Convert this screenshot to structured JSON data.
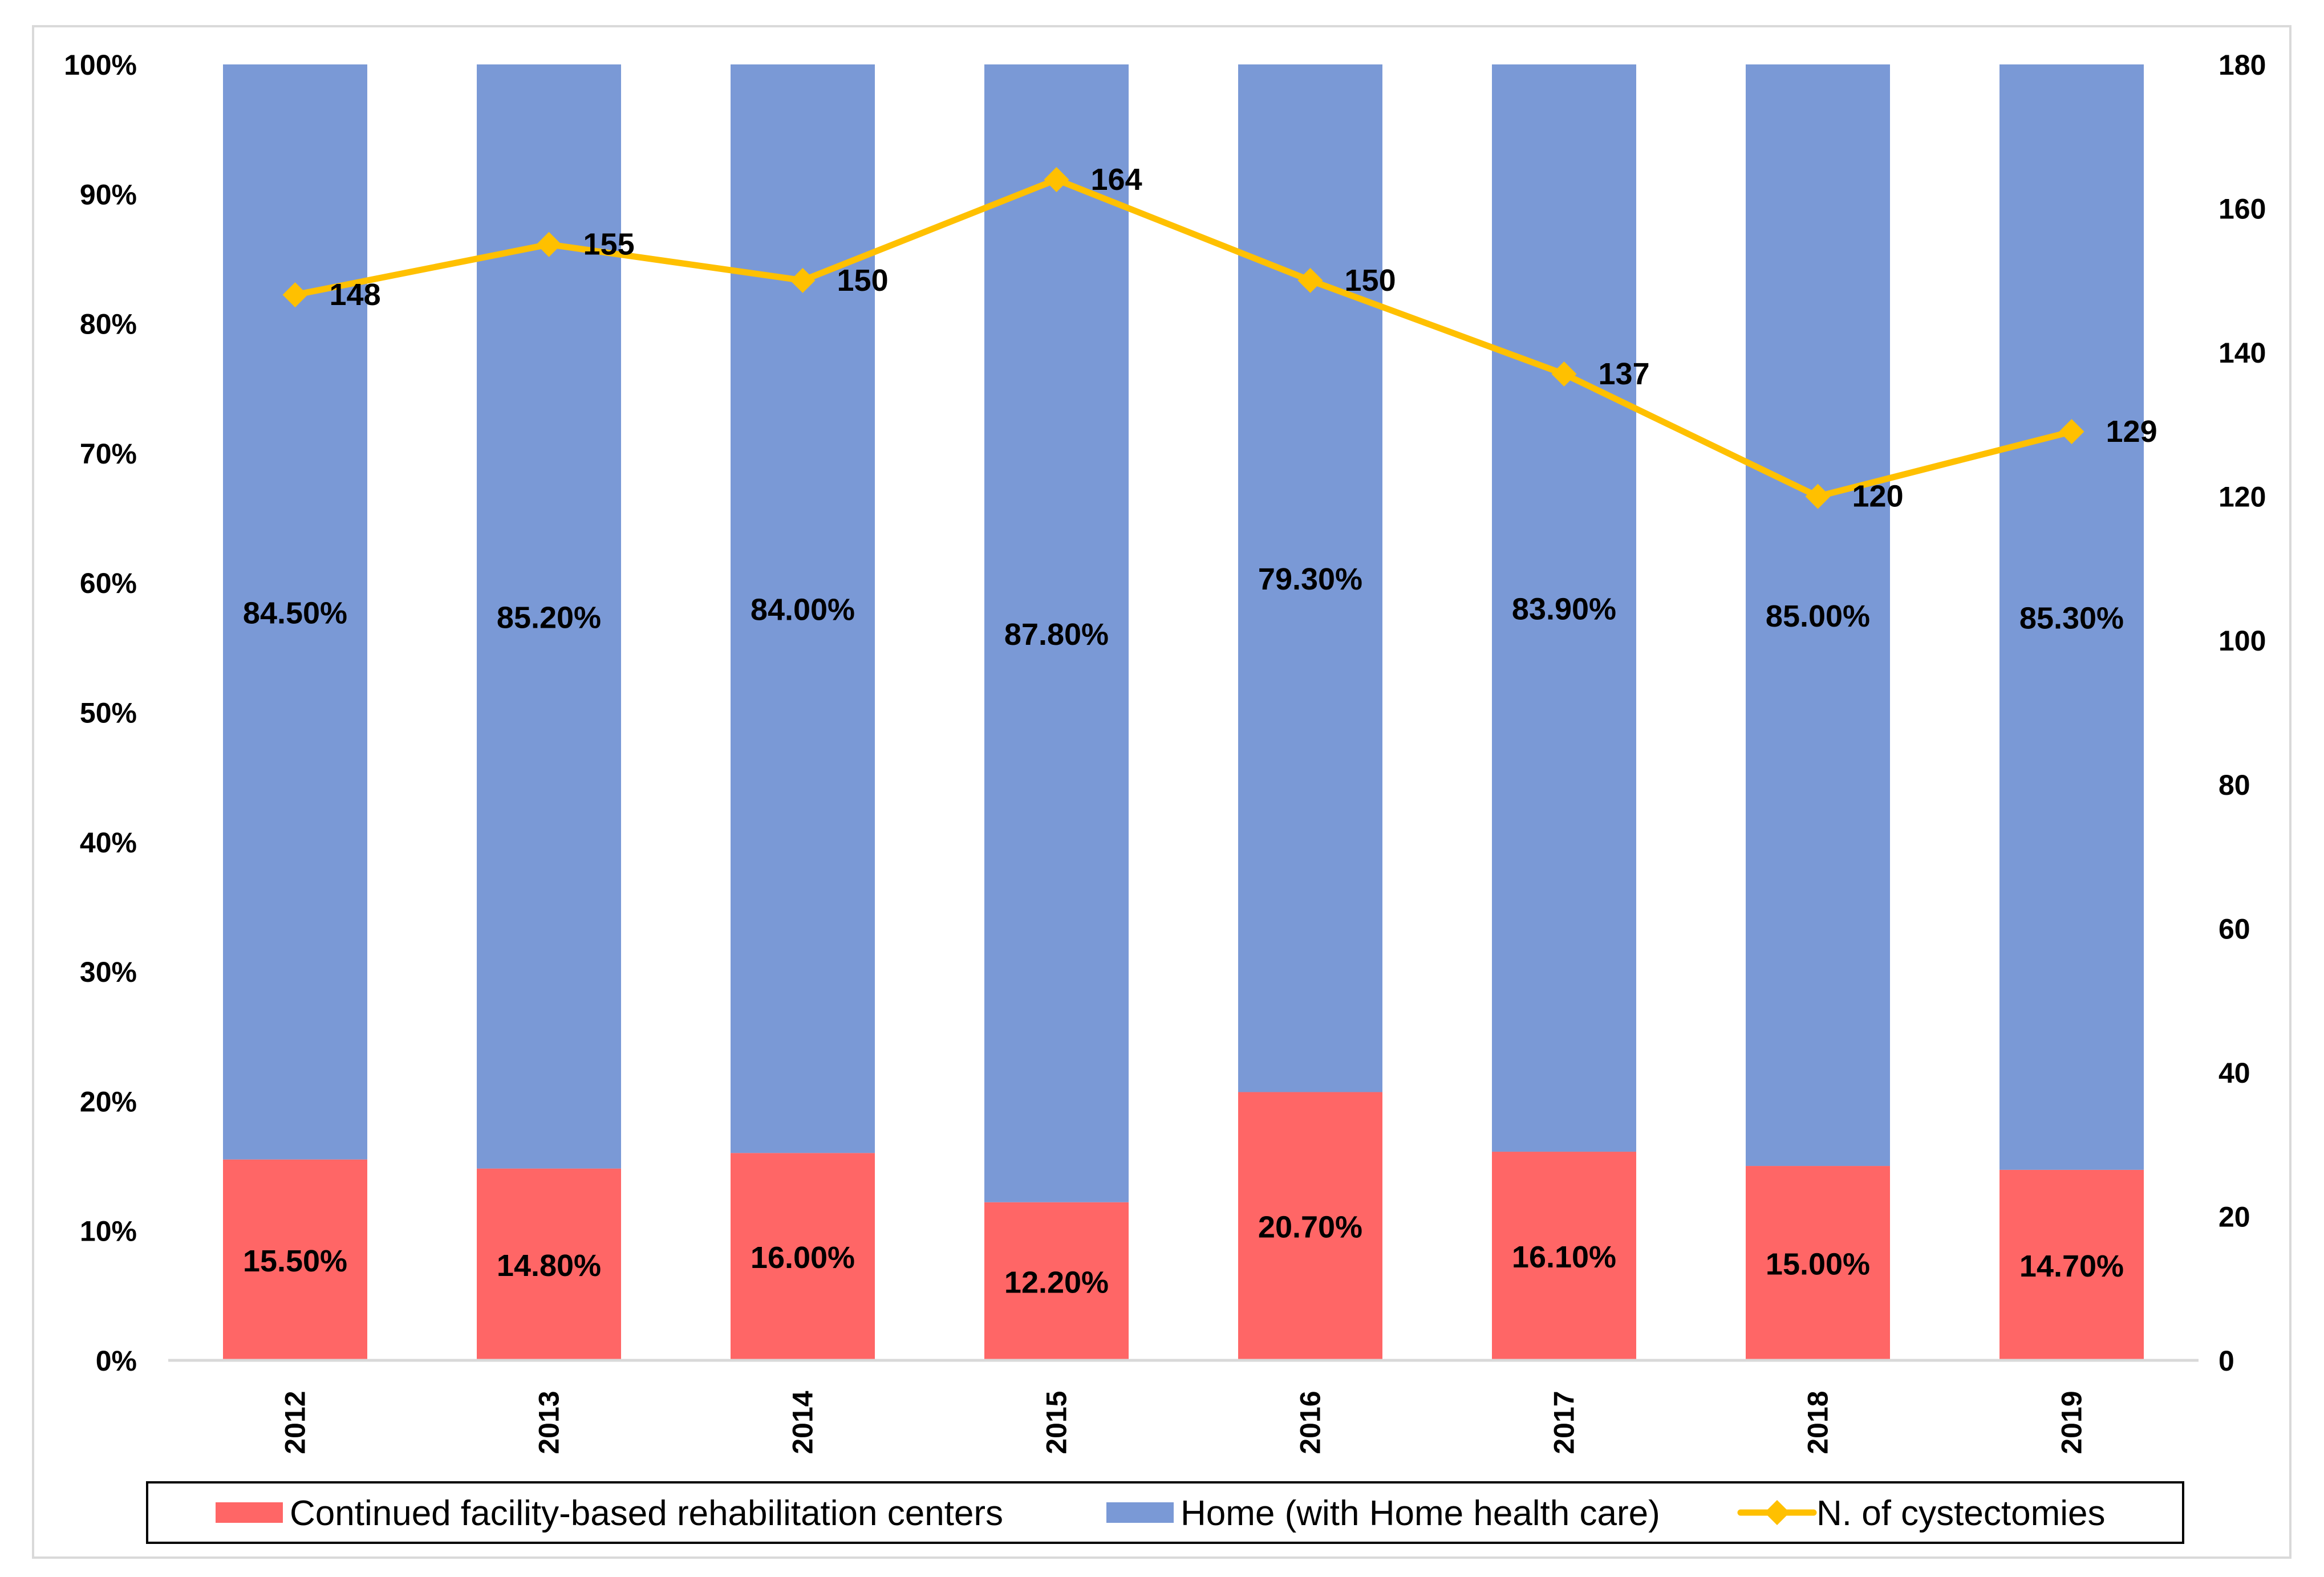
{
  "chart_data": {
    "type": "bar",
    "stacked": true,
    "categories": [
      "2012",
      "2013",
      "2014",
      "2015",
      "2016",
      "2017",
      "2018",
      "2019"
    ],
    "series": [
      {
        "name": "Continued facility-based rehabilitation centers",
        "kind": "bar",
        "axis": "left",
        "color": "#FF6666",
        "values": [
          15.5,
          14.8,
          16.0,
          12.2,
          20.7,
          16.1,
          15.0,
          14.7
        ],
        "labels": [
          "15.50%",
          "14.80%",
          "16.00%",
          "12.20%",
          "20.70%",
          "16.10%",
          "15.00%",
          "14.70%"
        ]
      },
      {
        "name": "Home (with Home health care)",
        "kind": "bar",
        "axis": "left",
        "color": "#7A99D6",
        "values": [
          84.5,
          85.2,
          84.0,
          87.8,
          79.3,
          83.9,
          85.0,
          85.3
        ],
        "labels": [
          "84.50%",
          "85.20%",
          "84.00%",
          "87.80%",
          "79.30%",
          "83.90%",
          "85.00%",
          "85.30%"
        ]
      },
      {
        "name": "N. of cystectomies",
        "kind": "line",
        "axis": "right",
        "color": "#FFC000",
        "marker": "diamond",
        "values": [
          148,
          155,
          150,
          164,
          150,
          137,
          120,
          129
        ],
        "labels": [
          "148",
          "155",
          "150",
          "164",
          "150",
          "137",
          "120",
          "129"
        ]
      }
    ],
    "y_left": {
      "range": [
        0,
        100
      ],
      "ticks": [
        0,
        10,
        20,
        30,
        40,
        50,
        60,
        70,
        80,
        90,
        100
      ],
      "tick_labels": [
        "0%",
        "10%",
        "20%",
        "30%",
        "40%",
        "50%",
        "60%",
        "70%",
        "80%",
        "90%",
        "100%"
      ]
    },
    "y_right": {
      "range": [
        0,
        180
      ],
      "ticks": [
        0,
        20,
        40,
        60,
        80,
        100,
        120,
        140,
        160,
        180
      ],
      "tick_labels": [
        "0",
        "20",
        "40",
        "60",
        "80",
        "100",
        "120",
        "140",
        "160",
        "180"
      ]
    },
    "x_tick_orientation": "vertical",
    "title": "",
    "xlabel": "",
    "ylabel": "",
    "grid": false,
    "legend_position": "bottom",
    "legend_entries": [
      "Continued facility-based rehabilitation centers",
      "Home (with Home health care)",
      "N. of cystectomies"
    ],
    "colors": {
      "axis": "#D9D9D9",
      "frame": "#D9D9D9",
      "legend_border": "#000000",
      "text": "#000000"
    }
  }
}
